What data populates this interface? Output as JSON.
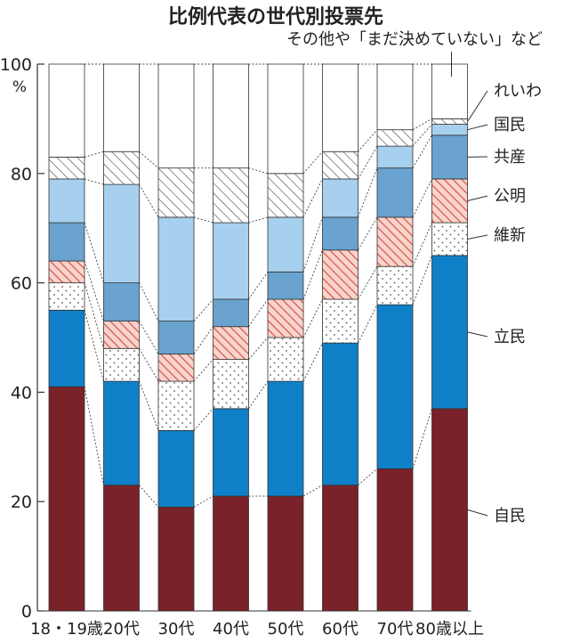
{
  "chart_data": {
    "type": "bar",
    "stacked": true,
    "title": "比例代表の世代別投票先",
    "ylabel": "%",
    "ylim": [
      0,
      100
    ],
    "yticks": [
      0,
      20,
      40,
      60,
      80,
      100
    ],
    "categories": [
      "18・19歳",
      "20代",
      "30代",
      "40代",
      "50代",
      "60代",
      "70代",
      "80歳以上"
    ],
    "series": [
      {
        "name": "自民",
        "color": "#7a2229",
        "values": [
          41,
          23,
          19,
          21,
          21,
          23,
          26,
          37
        ]
      },
      {
        "name": "立民",
        "color": "#0f80c8",
        "values": [
          14,
          19,
          14,
          16,
          21,
          26,
          30,
          28
        ]
      },
      {
        "name": "維新",
        "color": "#ffffff",
        "pattern": "dots",
        "values": [
          5,
          6,
          9,
          9,
          8,
          8,
          7,
          6
        ]
      },
      {
        "name": "公明",
        "color": "#f6c8c0",
        "pattern": "red-hatch",
        "values": [
          4,
          5,
          5,
          6,
          7,
          9,
          9,
          8
        ]
      },
      {
        "name": "共産",
        "color": "#6aa3cf",
        "values": [
          7,
          7,
          6,
          5,
          5,
          6,
          9,
          8
        ]
      },
      {
        "name": "国民",
        "color": "#a6d0ee",
        "values": [
          8,
          18,
          19,
          14,
          10,
          7,
          4,
          2
        ]
      },
      {
        "name": "れいわ",
        "color": "#ffffff",
        "pattern": "black-hatch",
        "values": [
          4,
          6,
          9,
          10,
          8,
          5,
          3,
          1
        ]
      },
      {
        "name": "その他や「まだ決めていない」など",
        "color": "#ffffff",
        "values": [
          17,
          16,
          19,
          19,
          20,
          16,
          12,
          10
        ]
      }
    ]
  }
}
